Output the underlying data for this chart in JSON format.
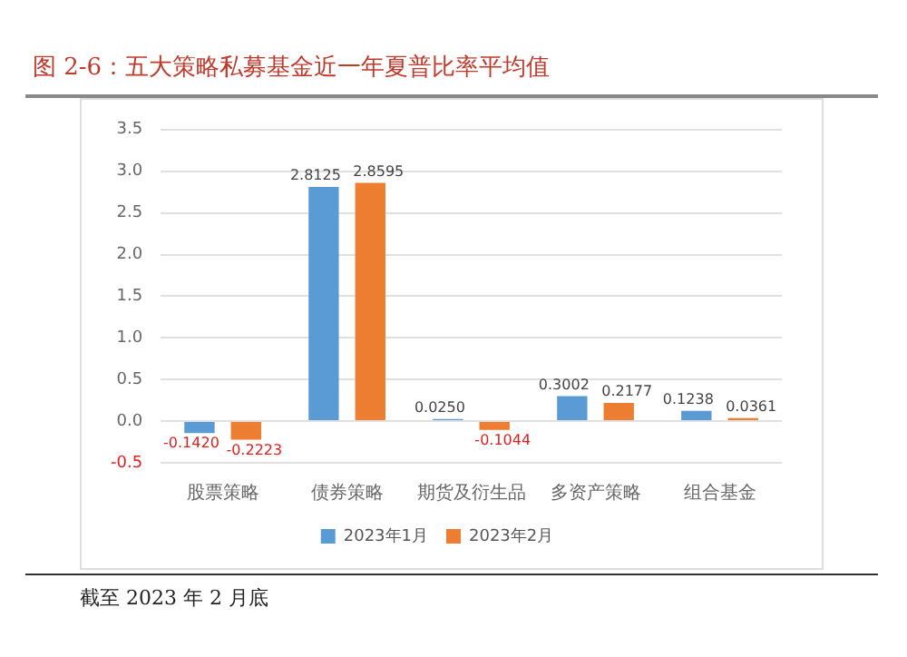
{
  "chart_data": {
    "type": "bar",
    "title": "图 2-6：五大策略私募基金近一年夏普比率平均值",
    "categories": [
      "股票策略",
      "债券策略",
      "期货及衍生品",
      "多资产策略",
      "组合基金"
    ],
    "series": [
      {
        "name": "2023年1月",
        "color": "#5b9bd5",
        "values": [
          -0.142,
          2.8125,
          0.025,
          0.3002,
          0.1238
        ]
      },
      {
        "name": "2023年2月",
        "color": "#ed7d31",
        "values": [
          -0.2223,
          2.8595,
          -0.1044,
          0.2177,
          0.0361
        ]
      }
    ],
    "value_labels": [
      [
        "-0.1420",
        "2.8125",
        "0.0250",
        "0.3002",
        "0.1238"
      ],
      [
        "-0.2223",
        "2.8595",
        "-0.1044",
        "0.2177",
        "0.0361"
      ]
    ],
    "ylim": [
      -0.5,
      3.5
    ],
    "yticks": [
      {
        "value": -0.5,
        "label": "-0.5"
      },
      {
        "value": 0,
        "label": "0.0"
      },
      {
        "value": 0.5,
        "label": "0.5"
      },
      {
        "value": 1,
        "label": "1.0"
      },
      {
        "value": 1.5,
        "label": "1.5"
      },
      {
        "value": 2,
        "label": "2.0"
      },
      {
        "value": 2.5,
        "label": "2.5"
      },
      {
        "value": 3,
        "label": "3.0"
      },
      {
        "value": 3.5,
        "label": "3.5"
      }
    ],
    "grid": "y",
    "legend": "bottom",
    "annotations": [
      "截至 2023 年 2 月底"
    ]
  }
}
